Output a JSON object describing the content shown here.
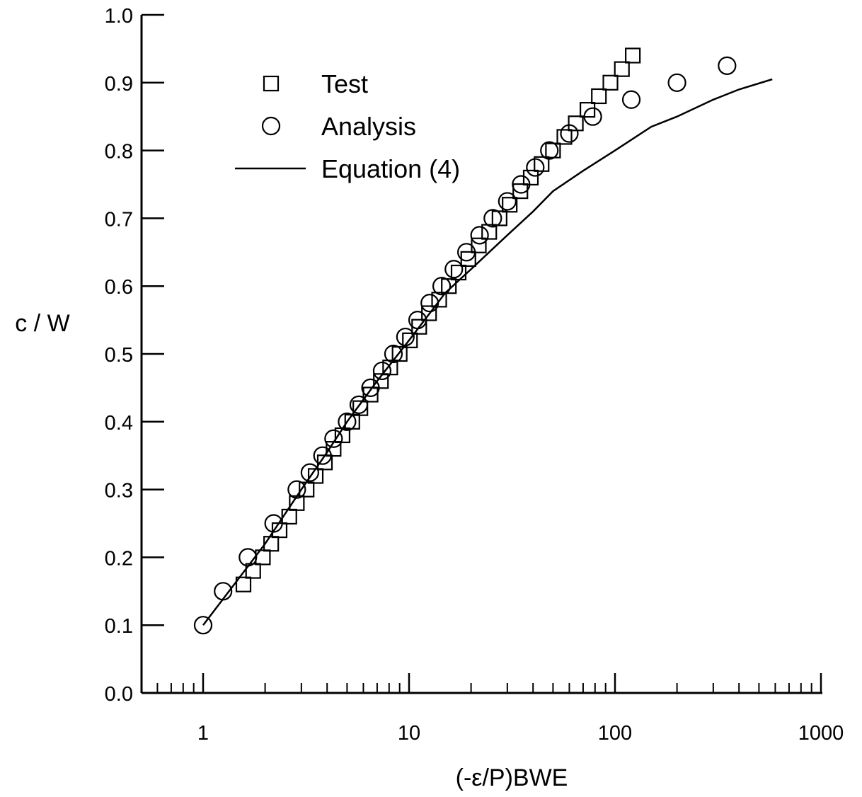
{
  "chart_data": {
    "type": "scatter",
    "title": "",
    "xlabel": "(-ε/P)BWE",
    "ylabel": "c / W",
    "x_scale": "log",
    "xlim": [
      0.5,
      1000
    ],
    "ylim": [
      0.0,
      1.0
    ],
    "x_ticks": [
      {
        "value": 1,
        "label": "1"
      },
      {
        "value": 10,
        "label": "10"
      },
      {
        "value": 100,
        "label": "100"
      },
      {
        "value": 1000,
        "label": "1000"
      }
    ],
    "y_ticks": [
      {
        "value": 0.0,
        "label": "0.0"
      },
      {
        "value": 0.1,
        "label": "0.1"
      },
      {
        "value": 0.2,
        "label": "0.2"
      },
      {
        "value": 0.3,
        "label": "0.3"
      },
      {
        "value": 0.4,
        "label": "0.4"
      },
      {
        "value": 0.5,
        "label": "0.5"
      },
      {
        "value": 0.6,
        "label": "0.6"
      },
      {
        "value": 0.7,
        "label": "0.7"
      },
      {
        "value": 0.8,
        "label": "0.8"
      },
      {
        "value": 0.9,
        "label": "0.9"
      },
      {
        "value": 1.0,
        "label": "1.0"
      }
    ],
    "grid": false,
    "legend_position": "top-left",
    "series": [
      {
        "name": "Test",
        "marker": "square",
        "points": [
          [
            1.57,
            0.16
          ],
          [
            1.75,
            0.18
          ],
          [
            1.95,
            0.2
          ],
          [
            2.14,
            0.22
          ],
          [
            2.35,
            0.24
          ],
          [
            2.62,
            0.26
          ],
          [
            2.85,
            0.28
          ],
          [
            3.18,
            0.3
          ],
          [
            3.52,
            0.32
          ],
          [
            3.9,
            0.34
          ],
          [
            4.3,
            0.36
          ],
          [
            4.75,
            0.38
          ],
          [
            5.3,
            0.4
          ],
          [
            5.8,
            0.42
          ],
          [
            6.5,
            0.44
          ],
          [
            7.3,
            0.46
          ],
          [
            8.1,
            0.48
          ],
          [
            9.0,
            0.5
          ],
          [
            10.1,
            0.52
          ],
          [
            11.2,
            0.54
          ],
          [
            12.5,
            0.56
          ],
          [
            14.0,
            0.58
          ],
          [
            15.6,
            0.6
          ],
          [
            17.4,
            0.62
          ],
          [
            19.4,
            0.64
          ],
          [
            21.8,
            0.66
          ],
          [
            24.5,
            0.68
          ],
          [
            27.5,
            0.7
          ],
          [
            30.8,
            0.72
          ],
          [
            34.7,
            0.74
          ],
          [
            39.0,
            0.76
          ],
          [
            44.0,
            0.78
          ],
          [
            50.0,
            0.8
          ],
          [
            56.8,
            0.82
          ],
          [
            64.5,
            0.84
          ],
          [
            73.5,
            0.86
          ],
          [
            83.5,
            0.88
          ],
          [
            95.0,
            0.9
          ],
          [
            108.0,
            0.92
          ],
          [
            122.0,
            0.94
          ]
        ]
      },
      {
        "name": "Analysis",
        "marker": "circle",
        "points": [
          [
            1.0,
            0.1
          ],
          [
            1.25,
            0.15
          ],
          [
            1.65,
            0.2
          ],
          [
            2.2,
            0.25
          ],
          [
            2.85,
            0.3
          ],
          [
            3.3,
            0.325
          ],
          [
            3.8,
            0.35
          ],
          [
            4.3,
            0.375
          ],
          [
            5.0,
            0.4
          ],
          [
            5.7,
            0.425
          ],
          [
            6.5,
            0.45
          ],
          [
            7.4,
            0.475
          ],
          [
            8.4,
            0.5
          ],
          [
            9.6,
            0.525
          ],
          [
            11.0,
            0.55
          ],
          [
            12.6,
            0.575
          ],
          [
            14.4,
            0.6
          ],
          [
            16.5,
            0.625
          ],
          [
            19.0,
            0.65
          ],
          [
            22.0,
            0.675
          ],
          [
            25.5,
            0.7
          ],
          [
            30.0,
            0.725
          ],
          [
            35.0,
            0.75
          ],
          [
            41.0,
            0.775
          ],
          [
            48.0,
            0.8
          ],
          [
            60.0,
            0.825
          ],
          [
            78.0,
            0.85
          ],
          [
            120.0,
            0.875
          ],
          [
            200.0,
            0.9
          ],
          [
            350.0,
            0.925
          ]
        ]
      },
      {
        "name": "Equation (4)",
        "marker": "line",
        "points": [
          [
            1.0,
            0.1
          ],
          [
            1.5,
            0.17
          ],
          [
            2.0,
            0.22
          ],
          [
            3.0,
            0.3
          ],
          [
            4.0,
            0.355
          ],
          [
            5.0,
            0.4
          ],
          [
            7.0,
            0.46
          ],
          [
            10.0,
            0.52
          ],
          [
            15.0,
            0.59
          ],
          [
            20.0,
            0.625
          ],
          [
            30.0,
            0.675
          ],
          [
            40.0,
            0.71
          ],
          [
            50.0,
            0.74
          ],
          [
            70.0,
            0.77
          ],
          [
            100.0,
            0.8
          ],
          [
            150.0,
            0.835
          ],
          [
            200.0,
            0.85
          ],
          [
            300.0,
            0.875
          ],
          [
            400.0,
            0.89
          ],
          [
            580.0,
            0.905
          ]
        ]
      }
    ],
    "legend": [
      {
        "label": "Test",
        "marker": "square"
      },
      {
        "label": "Analysis",
        "marker": "circle"
      },
      {
        "label": "Equation (4)",
        "marker": "line"
      }
    ]
  }
}
